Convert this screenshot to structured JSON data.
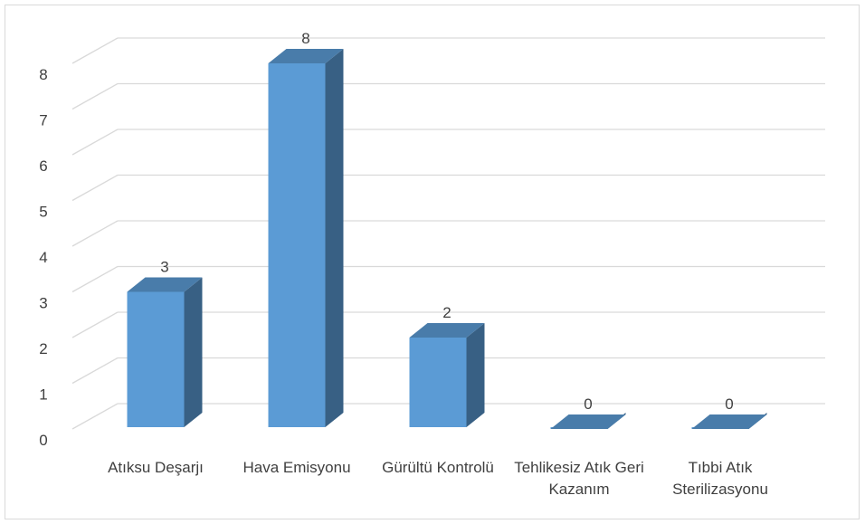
{
  "chart_data": {
    "type": "bar3d",
    "categories": [
      "Atıksu Deşarjı",
      "Hava Emisyonu",
      "Gürültü Kontrolü",
      "Tehlikesiz Atık Geri Kazanım",
      "Tıbbi Atık Sterilizasyonu"
    ],
    "values": [
      3,
      8,
      2,
      0,
      0
    ],
    "color": "#5b9bd5",
    "ylim": [
      0,
      8
    ],
    "yticks": [
      0,
      1,
      2,
      3,
      4,
      5,
      6,
      7,
      8
    ],
    "grid": true
  }
}
